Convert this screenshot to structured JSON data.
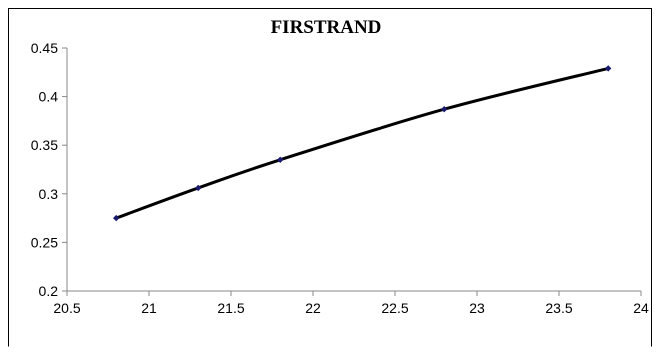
{
  "chart_data": {
    "type": "scatter",
    "title": "FIRSTRAND",
    "xlabel": "",
    "ylabel": "",
    "xlim": [
      20.5,
      24
    ],
    "ylim": [
      0.2,
      0.45
    ],
    "x_ticks": [
      20.5,
      21,
      21.5,
      22,
      22.5,
      23,
      23.5,
      24
    ],
    "x_tick_labels": [
      "20.5",
      "21",
      "21.5",
      "22",
      "22.5",
      "23",
      "23.5",
      "24"
    ],
    "y_ticks": [
      0.2,
      0.25,
      0.3,
      0.35,
      0.4,
      0.45
    ],
    "y_tick_labels": [
      "0.2",
      "0.25",
      "0.3",
      "0.35",
      "0.4",
      "0.45"
    ],
    "grid": false,
    "legend": "none",
    "smooth_line": true,
    "series": [
      {
        "x": [
          20.8,
          21.3,
          21.8,
          22.8,
          23.8
        ],
        "y": [
          0.275,
          0.306,
          0.335,
          0.387,
          0.429
        ],
        "line_color": "#000000",
        "marker_color": "#1a1a6e"
      }
    ]
  }
}
